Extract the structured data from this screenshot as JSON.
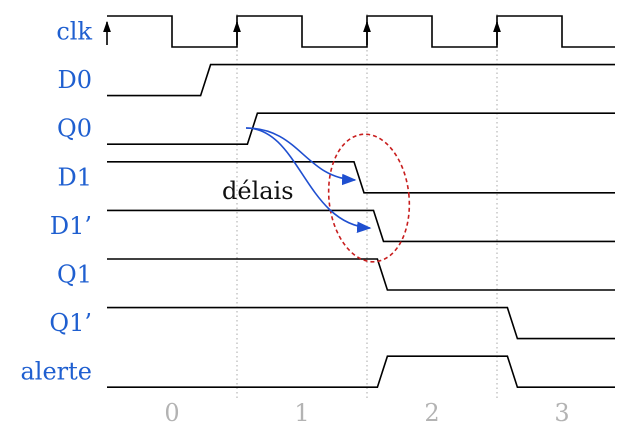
{
  "signals": [
    {
      "id": "clk",
      "label": "clk",
      "wave": [
        [
          0,
          1
        ],
        [
          0.5,
          0
        ],
        [
          1,
          1
        ],
        [
          1.5,
          0
        ],
        [
          2,
          1
        ],
        [
          2.5,
          0
        ],
        [
          3,
          1
        ],
        [
          3.5,
          0
        ]
      ],
      "edge_markers": [
        0,
        1,
        2,
        3
      ]
    },
    {
      "id": "d0",
      "label": "D0",
      "wave": [
        [
          0,
          0
        ],
        [
          0.72,
          1
        ]
      ]
    },
    {
      "id": "q0",
      "label": "Q0",
      "wave": [
        [
          0,
          0
        ],
        [
          1.08,
          1
        ]
      ]
    },
    {
      "id": "d1",
      "label": "D1",
      "wave": [
        [
          0,
          1
        ],
        [
          1.9,
          0
        ]
      ]
    },
    {
      "id": "d1p",
      "label": "D1’",
      "wave": [
        [
          0,
          1
        ],
        [
          2.05,
          0
        ]
      ]
    },
    {
      "id": "q1",
      "label": "Q1",
      "wave": [
        [
          0,
          1
        ],
        [
          2.08,
          0
        ]
      ]
    },
    {
      "id": "q1p",
      "label": "Q1’",
      "wave": [
        [
          0,
          1
        ],
        [
          3.08,
          0
        ]
      ]
    },
    {
      "id": "alerte",
      "label": "alerte",
      "wave": [
        [
          0,
          0
        ],
        [
          2.08,
          1
        ],
        [
          3.08,
          0
        ]
      ]
    }
  ],
  "time_axis": {
    "ticks": [
      {
        "label": "0",
        "t": 0.5
      },
      {
        "label": "1",
        "t": 1.5
      },
      {
        "label": "2",
        "t": 2.5
      },
      {
        "label": "3",
        "t": 3.5
      }
    ],
    "guides": [
      1,
      2,
      3
    ],
    "t_min": 0,
    "t_max": 4
  },
  "annotations": {
    "delay_label": "délais"
  },
  "colors": {
    "label": "#1f5fd0",
    "axis_label": "#b3b3b3",
    "wave": "#000000",
    "arrow": "#1f4fd0",
    "highlight": "#c81e1e",
    "guide": "#a8a8a8"
  }
}
